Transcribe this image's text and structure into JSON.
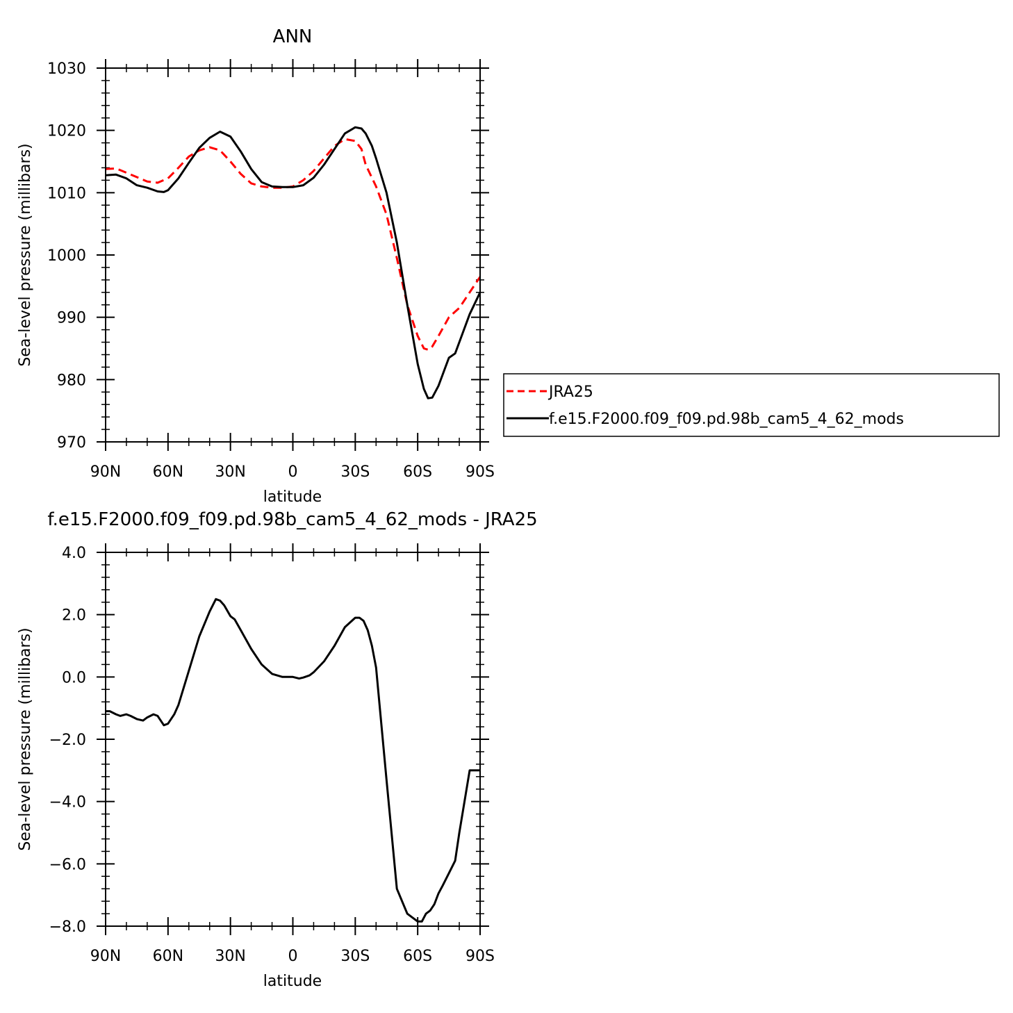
{
  "chart_data": [
    {
      "type": "line",
      "title": "ANN",
      "xlabel": "latitude",
      "ylabel": "Sea-level pressure (millibars)",
      "xlim": [
        90,
        -90
      ],
      "ylim": [
        970,
        1030
      ],
      "xticks": [
        90,
        60,
        30,
        0,
        -30,
        -60,
        -90
      ],
      "xtick_labels": [
        "90N",
        "60N",
        "30N",
        "0",
        "30S",
        "60S",
        "90S"
      ],
      "yticks": [
        970,
        980,
        990,
        1000,
        1010,
        1020,
        1030
      ],
      "ytick_labels": [
        "970",
        "980",
        "990",
        "1000",
        "1010",
        "1020",
        "1030"
      ],
      "legend_placement": "right",
      "series": [
        {
          "name": "JRA25",
          "color": "#ff0000",
          "style": "dashed",
          "x": [
            90,
            85,
            80,
            75,
            70,
            65,
            60,
            55,
            50,
            45,
            40,
            35,
            30,
            25,
            20,
            15,
            10,
            5,
            0,
            -5,
            -10,
            -15,
            -20,
            -25,
            -30,
            -33,
            -35,
            -40,
            -45,
            -50,
            -55,
            -60,
            -63,
            -65,
            -67,
            -70,
            -75,
            -80,
            -85,
            -90
          ],
          "y": [
            1013.8,
            1013.9,
            1013.2,
            1012.5,
            1011.8,
            1011.6,
            1012.3,
            1014.0,
            1015.8,
            1016.8,
            1017.3,
            1016.8,
            1015.0,
            1013.0,
            1011.5,
            1011.0,
            1010.8,
            1010.8,
            1011.0,
            1012.0,
            1013.5,
            1015.5,
            1017.5,
            1018.6,
            1018.3,
            1017.0,
            1014.5,
            1011.0,
            1006.5,
            999.5,
            992.0,
            987.0,
            985.0,
            984.8,
            985.3,
            987.0,
            990.0,
            991.5,
            994.0,
            996.5
          ]
        },
        {
          "name": "f.e15.F2000.f09_f09.pd.98b_cam5_4_62_mods",
          "color": "#000000",
          "style": "solid",
          "x": [
            90,
            85,
            80,
            75,
            70,
            65,
            62,
            60,
            55,
            50,
            45,
            40,
            35,
            30,
            25,
            20,
            15,
            10,
            5,
            0,
            -5,
            -10,
            -15,
            -20,
            -25,
            -30,
            -33,
            -35,
            -38,
            -40,
            -45,
            -50,
            -55,
            -60,
            -63,
            -65,
            -67,
            -70,
            -75,
            -78,
            -80,
            -85,
            -90
          ],
          "y": [
            1012.8,
            1012.9,
            1012.3,
            1011.2,
            1010.8,
            1010.2,
            1010.1,
            1010.4,
            1012.3,
            1014.8,
            1017.2,
            1018.8,
            1019.8,
            1019.0,
            1016.6,
            1013.8,
            1011.7,
            1011.0,
            1010.9,
            1010.9,
            1011.2,
            1012.4,
            1014.5,
            1017.0,
            1019.5,
            1020.5,
            1020.3,
            1019.5,
            1017.5,
            1015.5,
            1010.0,
            1002.0,
            992.0,
            982.5,
            978.5,
            977.0,
            977.1,
            979.0,
            983.5,
            984.2,
            986.0,
            990.5,
            994.0
          ]
        }
      ]
    },
    {
      "type": "line",
      "title": "f.e15.F2000.f09_f09.pd.98b_cam5_4_62_mods - JRA25",
      "xlabel": "latitude",
      "ylabel": "Sea-level pressure (millibars)",
      "xlim": [
        90,
        -90
      ],
      "ylim": [
        -8,
        4
      ],
      "xticks": [
        90,
        60,
        30,
        0,
        -30,
        -60,
        -90
      ],
      "xtick_labels": [
        "90N",
        "60N",
        "30N",
        "0",
        "30S",
        "60S",
        "90S"
      ],
      "yticks": [
        -8,
        -6,
        -4,
        -2,
        0,
        2,
        4
      ],
      "ytick_labels": [
        "−8.0",
        "−6.0",
        "−4.0",
        "−2.0",
        "0.0",
        "2.0",
        "4.0"
      ],
      "series": [
        {
          "color": "#000000",
          "style": "solid",
          "x": [
            90,
            88,
            85,
            83,
            80,
            78,
            75,
            72,
            70,
            67,
            65,
            62,
            60,
            57,
            55,
            50,
            45,
            40,
            37,
            35,
            33,
            30,
            28,
            25,
            20,
            15,
            10,
            5,
            0,
            -3,
            -5,
            -8,
            -10,
            -15,
            -20,
            -25,
            -30,
            -32,
            -34,
            -36,
            -38,
            -40,
            -45,
            -50,
            -55,
            -60,
            -62,
            -64,
            -66,
            -68,
            -70,
            -72,
            -75,
            -78,
            -80,
            -85,
            -88,
            -90
          ],
          "y": [
            -1.1,
            -1.1,
            -1.2,
            -1.25,
            -1.2,
            -1.25,
            -1.35,
            -1.4,
            -1.3,
            -1.2,
            -1.25,
            -1.55,
            -1.5,
            -1.2,
            -0.9,
            0.2,
            1.3,
            2.1,
            2.5,
            2.45,
            2.3,
            1.95,
            1.85,
            1.5,
            0.9,
            0.4,
            0.1,
            0.0,
            0.0,
            -0.05,
            -0.02,
            0.05,
            0.15,
            0.5,
            1.0,
            1.6,
            1.9,
            1.9,
            1.8,
            1.5,
            1.0,
            0.3,
            -3.3,
            -6.8,
            -7.6,
            -7.85,
            -7.85,
            -7.6,
            -7.5,
            -7.3,
            -6.95,
            -6.7,
            -6.3,
            -5.9,
            -5.0,
            -3.0,
            -3.0,
            -3.0
          ]
        }
      ]
    }
  ]
}
